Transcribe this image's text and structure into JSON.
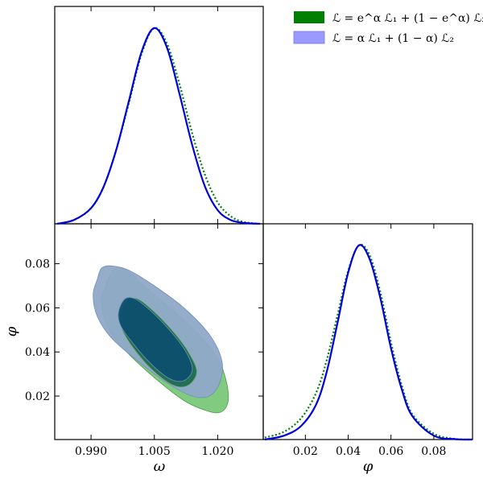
{
  "chart_data": {
    "type": "triangle-corner-plot",
    "legend": {
      "placement": "top-right",
      "entries": [
        {
          "label": "ℒ = e^α ℒ₁ + (1 − e^α) ℒ₂",
          "color": "#008000"
        },
        {
          "label": "ℒ = α ℒ₁ + (1 − α) ℒ₂",
          "color": "#9999ff"
        }
      ]
    },
    "parameters": [
      {
        "symbol": "ω",
        "range": [
          0.9814,
          1.0308
        ],
        "ticks": [
          "0.990",
          "1.005",
          "1.020"
        ],
        "tick_values": [
          0.99,
          1.005,
          1.02
        ]
      },
      {
        "symbol": "φ",
        "range": [
          0.0003,
          0.0981
        ],
        "ticks": [
          "0.02",
          "0.04",
          "0.06",
          "0.08"
        ],
        "tick_values": [
          0.02,
          0.04,
          0.06,
          0.08
        ]
      }
    ],
    "marginals": {
      "omega": {
        "x": [
          0.982,
          0.986,
          0.99,
          0.993,
          0.996,
          0.999,
          1.002,
          1.005,
          1.008,
          1.011,
          1.014,
          1.017,
          1.02,
          1.023,
          1.026,
          1.03
        ],
        "series": [
          {
            "name_ref": 1,
            "color": "#0000dd",
            "style": "solid",
            "values": [
              0.0,
              0.02,
              0.08,
              0.19,
              0.38,
              0.63,
              0.88,
              1.0,
              0.9,
              0.66,
              0.4,
              0.19,
              0.07,
              0.02,
              0.005,
              0.0
            ]
          },
          {
            "name_ref": 0,
            "color": "#008000",
            "style": "dotted",
            "values": [
              0.0,
              0.02,
              0.08,
              0.19,
              0.38,
              0.62,
              0.87,
              1.0,
              0.92,
              0.71,
              0.46,
              0.25,
              0.11,
              0.04,
              0.01,
              0.0
            ]
          }
        ]
      },
      "phi": {
        "x": [
          0.001,
          0.01,
          0.018,
          0.025,
          0.03,
          0.035,
          0.04,
          0.045,
          0.05,
          0.055,
          0.06,
          0.065,
          0.07,
          0.08,
          0.09,
          0.098
        ],
        "series": [
          {
            "name_ref": 1,
            "color": "#0000dd",
            "style": "solid",
            "values": [
              0.0,
              0.02,
              0.07,
              0.18,
              0.35,
              0.6,
              0.86,
              1.0,
              0.93,
              0.73,
              0.47,
              0.26,
              0.12,
              0.02,
              0.002,
              0.0
            ]
          },
          {
            "name_ref": 0,
            "color": "#008000",
            "style": "dotted",
            "values": [
              0.01,
              0.04,
              0.11,
              0.24,
              0.41,
              0.64,
              0.87,
              1.0,
              0.95,
              0.76,
              0.5,
              0.28,
              0.13,
              0.03,
              0.003,
              0.0
            ]
          }
        ]
      }
    },
    "joint_contours": {
      "x_param": "omega",
      "y_param": "phi",
      "regions": [
        {
          "series_ref": 0,
          "level": "95%",
          "color": "#79c879",
          "points": [
            [
              0.9925,
              0.064
            ],
            [
              0.9935,
              0.07
            ],
            [
              0.9945,
              0.075
            ],
            [
              0.996,
              0.078
            ],
            [
              0.9985,
              0.077
            ],
            [
              1.002,
              0.071
            ],
            [
              1.008,
              0.061
            ],
            [
              1.015,
              0.049
            ],
            [
              1.02,
              0.037
            ],
            [
              1.022,
              0.027
            ],
            [
              1.0225,
              0.018
            ],
            [
              1.021,
              0.013
            ],
            [
              1.018,
              0.013
            ],
            [
              1.012,
              0.018
            ],
            [
              1.004,
              0.03
            ],
            [
              0.997,
              0.043
            ],
            [
              0.9935,
              0.053
            ]
          ]
        },
        {
          "series_ref": 1,
          "level": "95%",
          "color": "#8fa8c8",
          "points": [
            [
              0.9905,
              0.066
            ],
            [
              0.9915,
              0.073
            ],
            [
              0.9925,
              0.078
            ],
            [
              0.995,
              0.079
            ],
            [
              0.999,
              0.077
            ],
            [
              1.005,
              0.07
            ],
            [
              1.012,
              0.06
            ],
            [
              1.018,
              0.048
            ],
            [
              1.021,
              0.036
            ],
            [
              1.0205,
              0.026
            ],
            [
              1.018,
              0.02
            ],
            [
              1.014,
              0.02
            ],
            [
              1.008,
              0.026
            ],
            [
              1.001,
              0.036
            ],
            [
              0.995,
              0.046
            ],
            [
              0.9915,
              0.056
            ]
          ]
        },
        {
          "series_ref": 0,
          "level": "68%",
          "color": "#1e6b50",
          "points": [
            [
              0.997,
              0.057
            ],
            [
              0.9985,
              0.063
            ],
            [
              1.001,
              0.064
            ],
            [
              1.005,
              0.058
            ],
            [
              1.0095,
              0.049
            ],
            [
              1.013,
              0.04
            ],
            [
              1.015,
              0.031
            ],
            [
              1.013,
              0.025
            ],
            [
              1.0095,
              0.025
            ],
            [
              1.0045,
              0.032
            ],
            [
              1.0,
              0.042
            ],
            [
              0.9975,
              0.05
            ]
          ]
        },
        {
          "series_ref": 1,
          "level": "68%",
          "color": "#0d4f6e",
          "points": [
            [
              0.9965,
              0.058
            ],
            [
              0.998,
              0.064
            ],
            [
              1.0005,
              0.064
            ],
            [
              1.0045,
              0.058
            ],
            [
              1.009,
              0.049
            ],
            [
              1.0125,
              0.04
            ],
            [
              1.014,
              0.032
            ],
            [
              1.012,
              0.027
            ],
            [
              1.0085,
              0.028
            ],
            [
              1.004,
              0.035
            ],
            [
              0.9995,
              0.045
            ],
            [
              0.997,
              0.052
            ]
          ]
        }
      ]
    }
  }
}
